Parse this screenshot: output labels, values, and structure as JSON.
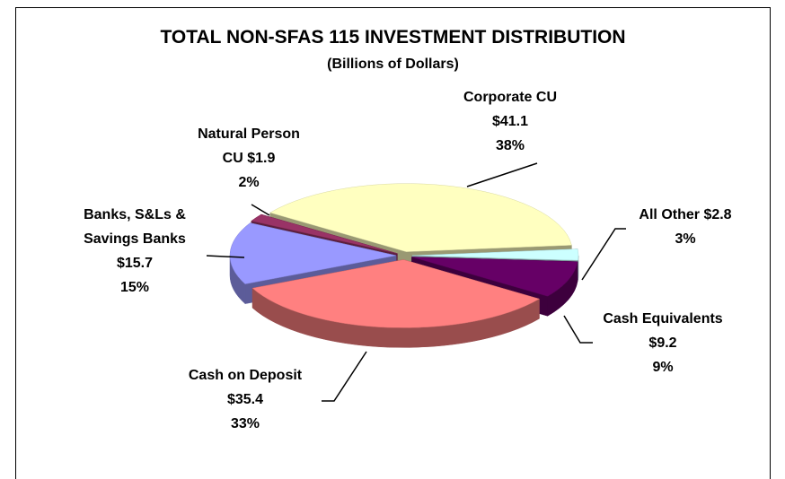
{
  "chart_data": {
    "type": "pie",
    "title": "TOTAL NON-SFAS 115 INVESTMENT DISTRIBUTION",
    "subtitle": "(Billions of Dollars)",
    "categories": [
      "Corporate CU",
      "All Other",
      "Cash Equivalents",
      "Cash on Deposit",
      "Banks, S&Ls & Savings Banks",
      "Natural Person CU"
    ],
    "values": [
      41.1,
      2.8,
      9.2,
      35.4,
      15.7,
      1.9
    ],
    "value_labels": [
      "$41.1",
      "$2.8",
      "$9.2",
      "$35.4",
      "$15.7",
      "$1.9"
    ],
    "percents": [
      38,
      3,
      9,
      33,
      15,
      2
    ],
    "percent_labels": [
      "38%",
      "3%",
      "9%",
      "33%",
      "15%",
      "2%"
    ],
    "colors": [
      "#ffffc0",
      "#ccffff",
      "#660066",
      "#ff8080",
      "#9999ff",
      "#993366"
    ]
  }
}
